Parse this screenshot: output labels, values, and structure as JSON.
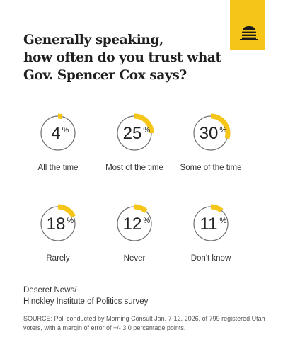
{
  "header": {
    "title_lines": [
      "Generally speaking,",
      "how often do you trust what",
      "Gov. Spencer Cox says?"
    ]
  },
  "logo": {
    "icon": "beehive-icon",
    "bg_color": "#f5c518"
  },
  "chart_data": {
    "type": "donut",
    "unit": "%",
    "categories": [
      "All the time",
      "Most of the time",
      "Some of the time",
      "Rarely",
      "Never",
      "Don't know"
    ],
    "values": [
      4,
      25,
      30,
      18,
      12,
      11
    ],
    "colors": {
      "filled": "#f5c518",
      "ring": "#6f6f6f"
    }
  },
  "footer": {
    "source_lines": [
      "Deseret News/",
      "Hinckley Institute of Politics survey"
    ],
    "note": "SOURCE: Poll conducted by Morning Consult Jan. 7-12, 2026, of 799 registered Utah voters, with a margin of error of +/- 3.0 percentage points."
  }
}
